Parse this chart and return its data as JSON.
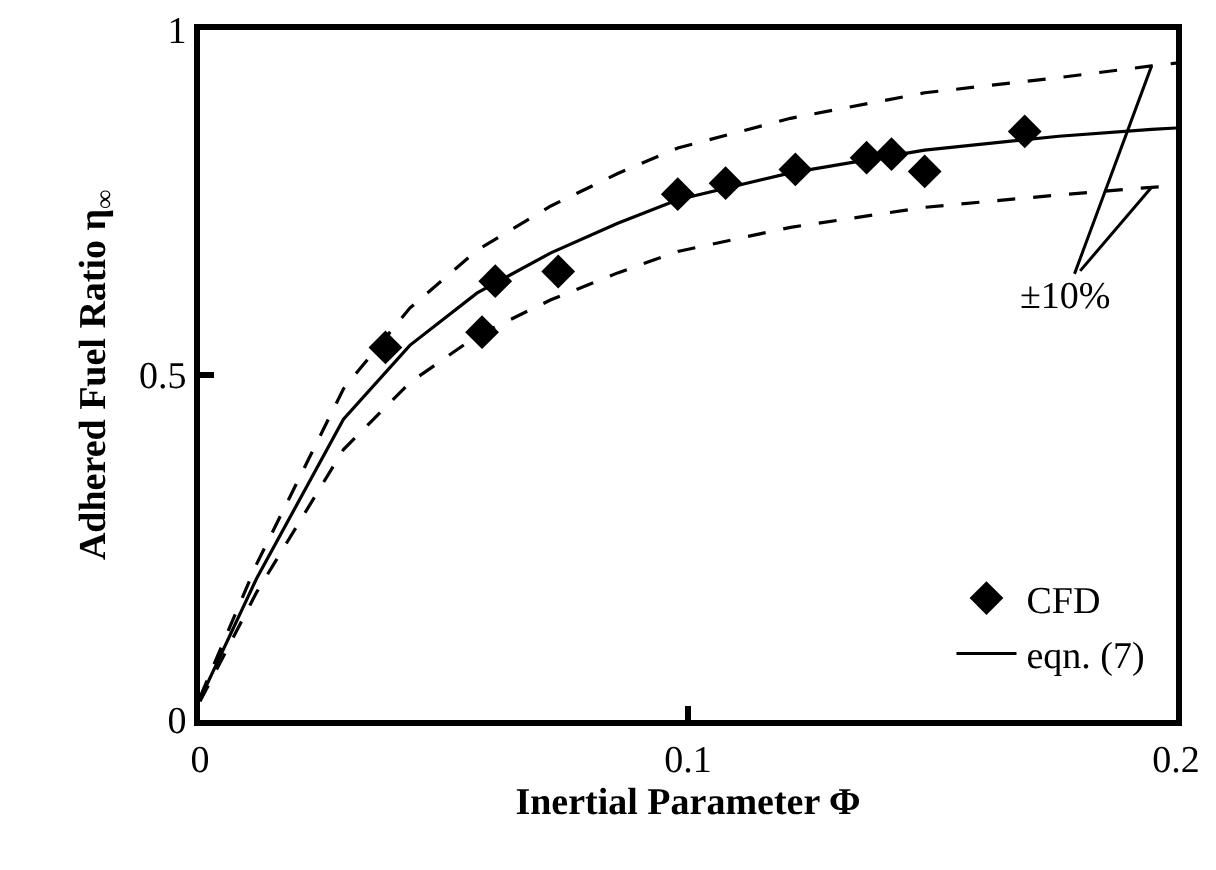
{
  "chart_data": {
    "type": "scatter",
    "xlabel": "Inertial Parameter Φ",
    "ylabel": "Adhered Fuel Ratio η$_{∞}$",
    "xlim": [
      0,
      0.2
    ],
    "xticks": [
      0,
      0.1,
      0.2
    ],
    "ylim": [
      0,
      1
    ],
    "yticks": [
      0,
      0.5,
      1
    ],
    "grid": false,
    "legend": "bottom right",
    "annotations": [
      {
        "text": "±10%",
        "x": 0.195,
        "y": 0.948
      }
    ],
    "series": [
      {
        "name": "CFD",
        "marker": "diamond",
        "color": "#000000",
        "x": [
          0.038,
          0.0605,
          0.0578,
          0.0734,
          0.0979,
          0.1077,
          0.122,
          0.1366,
          0.1417,
          0.1485,
          0.169
        ],
        "values": [
          0.54,
          0.636,
          0.562,
          0.65,
          0.762,
          0.778,
          0.798,
          0.815,
          0.82,
          0.795,
          0.853
        ]
      },
      {
        "name": "eqn. (7)",
        "type": "line",
        "line_style": "solid",
        "marker": "none",
        "color": "#000000",
        "x": [
          0,
          0.0116,
          0.0294,
          0.043,
          0.0568,
          0.0719,
          0.0856,
          0.0979,
          0.121,
          0.1485,
          0.176,
          0.195,
          0.2
        ],
        "values": [
          0.03,
          0.205,
          0.436,
          0.543,
          0.619,
          0.677,
          0.72,
          0.754,
          0.793,
          0.826,
          0.846,
          0.856,
          0.858
        ]
      },
      {
        "type": "line",
        "line_style": "dashed",
        "marker": "none",
        "color": "#000000",
        "x": [
          0,
          0.0116,
          0.0294,
          0.043,
          0.0568,
          0.0719,
          0.0856,
          0.0979,
          0.121,
          0.1485,
          0.176,
          0.195,
          0.2
        ],
        "values": [
          0.033,
          0.226,
          0.48,
          0.597,
          0.681,
          0.745,
          0.792,
          0.829,
          0.872,
          0.909,
          0.931,
          0.948,
          0.952
        ]
      },
      {
        "type": "line",
        "line_style": "dashed",
        "marker": "none",
        "color": "#000000",
        "x": [
          0,
          0.0116,
          0.0294,
          0.043,
          0.0568,
          0.0719,
          0.0856,
          0.0979,
          0.121,
          0.1485,
          0.176,
          0.195,
          0.2
        ],
        "values": [
          0.027,
          0.185,
          0.392,
          0.489,
          0.557,
          0.609,
          0.648,
          0.679,
          0.714,
          0.743,
          0.761,
          0.772,
          0.774
        ]
      }
    ]
  }
}
